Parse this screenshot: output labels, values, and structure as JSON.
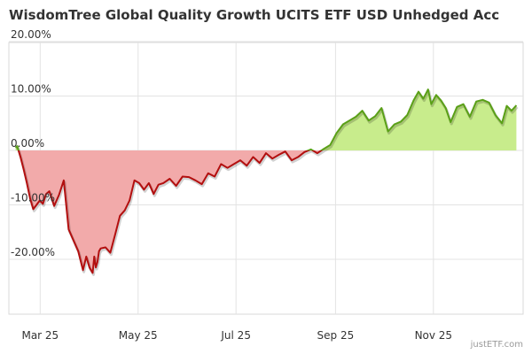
{
  "chart_data": {
    "type": "area",
    "title": "WisdomTree Global Quality Growth UCITS ETF USD Unhedged Acc",
    "xlabel": "",
    "ylabel": "",
    "ylim": [
      -25,
      25
    ],
    "grid": true,
    "y_ticks": [
      "20.00%",
      "10.00%",
      "0.00%",
      "-10.00%",
      "-20.00%"
    ],
    "y_tick_values": [
      20,
      10,
      0,
      -10,
      -20
    ],
    "x_ticks": [
      "Mar 25",
      "May 25",
      "Jul 25",
      "Sep 25",
      "Nov 25"
    ],
    "x_tick_dates": [
      "2025-03-01",
      "2025-05-01",
      "2025-07-01",
      "2025-09-01",
      "2025-11-01"
    ],
    "x_range": [
      "2025-02-15",
      "2025-12-28"
    ],
    "colors": {
      "positive_line": "#5aa017",
      "positive_fill": "#c8ec8c",
      "negative_line": "#b30f0f",
      "negative_fill": "#f2aaaa"
    },
    "series": [
      {
        "x": [
          "2025-02-17",
          "2025-02-18",
          "2025-02-20",
          "2025-02-22",
          "2025-02-24",
          "2025-02-26",
          "2025-02-28",
          "2025-03-02",
          "2025-03-04",
          "2025-03-06",
          "2025-03-08",
          "2025-03-10",
          "2025-03-13",
          "2025-03-16",
          "2025-03-19",
          "2025-03-22",
          "2025-03-25",
          "2025-03-28",
          "2025-03-31",
          "2025-04-02",
          "2025-04-04",
          "2025-04-06",
          "2025-04-07",
          "2025-04-08",
          "2025-04-09",
          "2025-04-10",
          "2025-04-11",
          "2025-04-14",
          "2025-04-17",
          "2025-04-20",
          "2025-04-23",
          "2025-04-26",
          "2025-04-29",
          "2025-05-02",
          "2025-05-05",
          "2025-05-08",
          "2025-05-11",
          "2025-05-14",
          "2025-05-17",
          "2025-05-20",
          "2025-05-24",
          "2025-05-28",
          "2025-06-01",
          "2025-06-05",
          "2025-06-09",
          "2025-06-13",
          "2025-06-17",
          "2025-06-21",
          "2025-06-25",
          "2025-06-29",
          "2025-07-03",
          "2025-07-07",
          "2025-07-11",
          "2025-07-15",
          "2025-07-19",
          "2025-07-23",
          "2025-07-27",
          "2025-07-31",
          "2025-08-04",
          "2025-08-08",
          "2025-08-12",
          "2025-08-16",
          "2025-08-20",
          "2025-08-24",
          "2025-08-28",
          "2025-09-01",
          "2025-09-05",
          "2025-09-09",
          "2025-09-13",
          "2025-09-17",
          "2025-09-21",
          "2025-09-25",
          "2025-09-29",
          "2025-10-03",
          "2025-10-07",
          "2025-10-11",
          "2025-10-15",
          "2025-10-19",
          "2025-10-23",
          "2025-10-26",
          "2025-10-29",
          "2025-11-01",
          "2025-11-03",
          "2025-11-06",
          "2025-11-09",
          "2025-11-12",
          "2025-11-15",
          "2025-11-19",
          "2025-11-23",
          "2025-11-27",
          "2025-12-01",
          "2025-12-05",
          "2025-12-09",
          "2025-12-13",
          "2025-12-17",
          "2025-12-20",
          "2025-12-23",
          "2025-12-26"
        ],
        "y": [
          0.5,
          0.8,
          -1.2,
          -3.5,
          -6,
          -8.8,
          -10.8,
          -10,
          -9.2,
          -9.8,
          -8,
          -7.5,
          -10.2,
          -8.2,
          -5.5,
          -14.5,
          -16.5,
          -18.5,
          -22,
          -19.5,
          -21.5,
          -22.5,
          -19.5,
          -21.5,
          -20.5,
          -18.5,
          -18,
          -17.8,
          -18.8,
          -15.5,
          -12,
          -11,
          -9.2,
          -5.5,
          -6,
          -7.2,
          -6,
          -8,
          -6.3,
          -6,
          -5.2,
          -6.5,
          -4.8,
          -4.9,
          -5.5,
          -6.2,
          -4.2,
          -4.8,
          -2.5,
          -3.2,
          -2.5,
          -1.8,
          -2.8,
          -1.2,
          -2.3,
          -0.5,
          -1.5,
          -0.8,
          -0.2,
          -1.8,
          -1.2,
          -0.3,
          0.2,
          -0.5,
          0.3,
          1,
          3.2,
          4.8,
          5.5,
          6.2,
          7.3,
          5.5,
          6.3,
          7.8,
          3.5,
          4.8,
          5.3,
          6.5,
          9.2,
          10.8,
          9.5,
          11.2,
          8.5,
          10.2,
          9.2,
          7.8,
          5.2,
          8,
          8.5,
          6.2,
          9,
          9.3,
          8.8,
          6.5,
          5,
          8.2,
          7.3,
          8.3
        ]
      }
    ]
  },
  "watermark": "justETF.com"
}
